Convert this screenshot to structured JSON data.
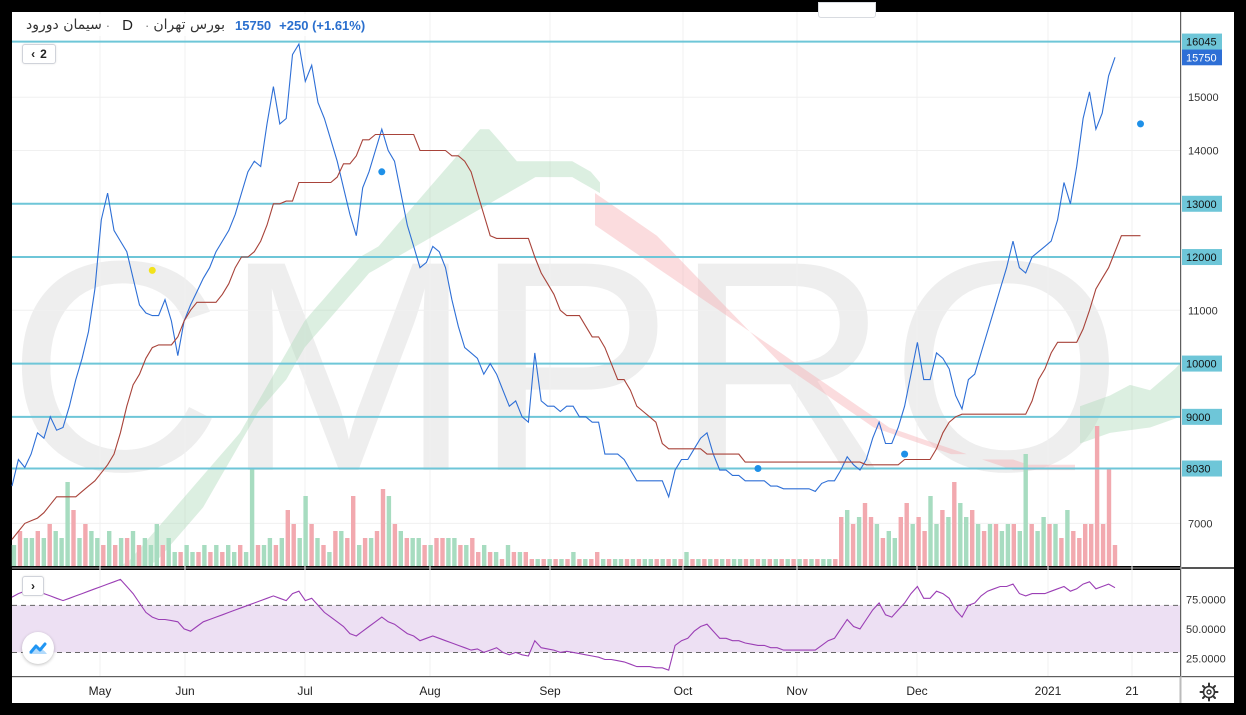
{
  "legend": {
    "symbol": "سیمان دورود",
    "dot": "·",
    "timeframe": "D",
    "exchange": "بورس تهران",
    "price": "15750",
    "change": "+250 (+1.61%)"
  },
  "indicator_count": "2",
  "controls": {
    "collapse_main": "‹",
    "expand_rsi": "›"
  },
  "colors": {
    "price_line": "#2e6fd6",
    "base_line": "#a8433a",
    "horizontal_level": "#6ec6d8",
    "cloud_bull": "#a8d8b4",
    "cloud_bear": "#f5a8ad",
    "volume_up": "#a7dcc0",
    "volume_down": "#f2a9af",
    "rsi_line": "#9b3fb5",
    "rsi_band": "#ede0f3",
    "marker": "#1e90e8",
    "marker_yellow": "#f2e21b",
    "watermark": "#e4e4e4"
  },
  "watermark": "CMPRO",
  "chart_data": [
    {
      "type": "line",
      "title": "",
      "x_ticks": [
        "May",
        "Jun",
        "Jul",
        "Aug",
        "Sep",
        "Oct",
        "Nov",
        "Dec",
        "2021",
        "21"
      ],
      "y_ticks": [
        7000,
        8030,
        9000,
        10000,
        11000,
        12000,
        13000,
        14000,
        15000,
        15750,
        16045
      ],
      "y_axis_labels": [
        "7000",
        "8030",
        "9000",
        "10000",
        "11000",
        "12000",
        "13000",
        "14000",
        "15000",
        "15750",
        "16045"
      ],
      "highlighted_y_labels": [
        "8030",
        "9000",
        "10000",
        "12000",
        "13000",
        "15750",
        "16045"
      ],
      "ylim": [
        6200,
        16600
      ],
      "horizontal_levels": [
        8030,
        9000,
        10000,
        12000,
        13000,
        16045
      ],
      "grid": true,
      "series": [
        {
          "kind": "price",
          "values": [
            7700,
            8200,
            8050,
            8300,
            8700,
            8600,
            9000,
            8750,
            8800,
            9200,
            9700,
            10100,
            10600,
            11400,
            12700,
            13200,
            12500,
            12300,
            12100,
            11600,
            11100,
            10950,
            10900,
            10900,
            11200,
            10800,
            10150,
            10800,
            11100,
            11350,
            11600,
            11800,
            12100,
            12300,
            12500,
            12800,
            13200,
            13600,
            13800,
            13700,
            14500,
            15200,
            14500,
            14600,
            15800,
            16000,
            15300,
            15600,
            14900,
            14600,
            14200,
            13800,
            13300,
            12800,
            12400,
            13300,
            13600,
            14000,
            14400,
            14000,
            13800,
            13200,
            12600,
            12200,
            11800,
            11900,
            12200,
            12100,
            11800,
            11200,
            10700,
            10300,
            10200,
            10100,
            9800,
            10000,
            9800,
            9500,
            9200,
            9300,
            9000,
            8900,
            10200,
            9300,
            9200,
            9200,
            9100,
            9200,
            9200,
            9000,
            9000,
            8900,
            8900,
            8300,
            8300,
            8300,
            8200,
            8000,
            7800,
            7800,
            7800,
            7800,
            7800,
            7500,
            8000,
            8200,
            8200,
            8400,
            8600,
            8700,
            8300,
            8000,
            8000,
            7900,
            7900,
            7800,
            7800,
            7800,
            7800,
            7700,
            7700,
            7650,
            7650,
            7650,
            7650,
            7650,
            7600,
            7750,
            7800,
            7800,
            8000,
            8250,
            8100,
            8000,
            8200,
            8600,
            8900,
            8500,
            8500,
            8800,
            9200,
            9800,
            10400,
            9700,
            9700,
            10200,
            10100,
            9900,
            9400,
            9150,
            9700,
            9800,
            10200,
            10600,
            11000,
            11400,
            11800,
            12300,
            11800,
            11700,
            12000,
            12100,
            12200,
            12300,
            12700,
            13400,
            13000,
            13700,
            14600,
            15100,
            14400,
            14700,
            15400,
            15750
          ]
        },
        {
          "kind": "baseline",
          "values": [
            6700,
            6850,
            7000,
            7050,
            7100,
            7200,
            7350,
            7500,
            7500,
            7500,
            7500,
            7600,
            7700,
            7800,
            7950,
            8100,
            8300,
            8700,
            9200,
            9600,
            9800,
            10100,
            10300,
            10350,
            10350,
            10350,
            10500,
            10800,
            11000,
            11150,
            11150,
            11150,
            11150,
            11300,
            11500,
            11800,
            12000,
            12000,
            12100,
            12300,
            12600,
            13000,
            13000,
            13050,
            13050,
            13400,
            13400,
            13400,
            13400,
            13400,
            13400,
            13500,
            13750,
            13750,
            13900,
            14200,
            14200,
            14300,
            14300,
            14300,
            14300,
            14300,
            14300,
            14300,
            14000,
            14000,
            14000,
            14000,
            14000,
            13900,
            13900,
            13800,
            13600,
            13200,
            12800,
            12400,
            12350,
            12350,
            12350,
            12350,
            12350,
            12350,
            12000,
            11700,
            11500,
            11300,
            11000,
            10900,
            10900,
            10900,
            10700,
            10500,
            10500,
            10300,
            10000,
            9700,
            9700,
            9500,
            9200,
            9100,
            9000,
            8900,
            8500,
            8400,
            8400,
            8400,
            8400,
            8400,
            8400,
            8300,
            8300,
            8300,
            8300,
            8300,
            8300,
            8150,
            8150,
            8150,
            8150,
            8150,
            8150,
            8150,
            8150,
            8150,
            8150,
            8150,
            8150,
            8150,
            8150,
            8150,
            8150,
            8150,
            8150,
            8150,
            8100,
            8100,
            8100,
            8100,
            8100,
            8100,
            8200,
            8200,
            8200,
            8200,
            8200,
            8400,
            8700,
            8900,
            9000,
            9050,
            9050,
            9050,
            9050,
            9050,
            9050,
            9050,
            9050,
            9050,
            9050,
            9050,
            9300,
            9700,
            9900,
            10200,
            10400,
            10400,
            10400,
            10400,
            10650,
            11000,
            11400,
            11600,
            11800,
            12100,
            12400,
            12400,
            12400,
            12400
          ]
        }
      ],
      "cloud": [
        {
          "kind": "bull",
          "top": [
            6200,
            6300,
            6500,
            6700,
            6900,
            7100,
            7300,
            7500,
            7700,
            7900,
            8100,
            8300,
            8500,
            8700,
            9000,
            9300,
            9600,
            9900,
            10200,
            10500,
            10800,
            11000,
            11200,
            11400,
            11600,
            11800,
            12000,
            12100,
            12200,
            12400,
            12600,
            12800,
            13000,
            13200,
            13400,
            13600,
            13800,
            14000,
            14200,
            14400,
            14400,
            14200,
            14000,
            13800,
            13800,
            13800,
            13800,
            13800,
            13800,
            13800,
            13700,
            13600,
            13400
          ],
          "bottom": [
            6200,
            6200,
            6200,
            6200,
            6300,
            6500,
            6700,
            6900,
            7100,
            7300,
            7600,
            7900,
            8200,
            8500,
            8800,
            9100,
            9300,
            9500,
            9700,
            10000,
            10300,
            10500,
            10700,
            10900,
            11100,
            11300,
            11500,
            11700,
            11800,
            11900,
            12000,
            12100,
            12200,
            12300,
            12400,
            12500,
            12600,
            12700,
            12800,
            12900,
            13000,
            13100,
            13200,
            13300,
            13400,
            13500,
            13500,
            13500,
            13500,
            13500,
            13400,
            13300,
            13200
          ]
        },
        {
          "kind": "bear",
          "top": [
            13200,
            13000,
            12800,
            12600,
            12400,
            12100,
            11800,
            11500,
            11200,
            10900,
            10600,
            10300,
            10000,
            9800,
            9600,
            9400,
            9200,
            9000,
            8800,
            8700,
            8600,
            8500,
            8400,
            8300,
            8300,
            8200,
            8200,
            8200,
            8100,
            8100,
            8100,
            8100
          ],
          "bottom": [
            12600,
            12400,
            12200,
            12000,
            11800,
            11600,
            11400,
            11200,
            11000,
            10800,
            10600,
            10400,
            10200,
            10000,
            9800,
            9600,
            9400,
            9200,
            9000,
            8800,
            8700,
            8600,
            8500,
            8400,
            8300,
            8200,
            8100,
            8000,
            8000,
            8000,
            8000,
            8000
          ]
        }
      ],
      "markers": [
        {
          "index": 22,
          "value": 11750,
          "color": "yellow"
        },
        {
          "index": 58,
          "value": 13600,
          "color": "blue"
        },
        {
          "index": 117,
          "value": 8030,
          "color": "blue"
        },
        {
          "index": 140,
          "value": 8300,
          "color": "blue"
        },
        {
          "index": 177,
          "value": 14500,
          "color": "blue"
        }
      ]
    },
    {
      "type": "bar",
      "title": "",
      "series_kind": "volume",
      "values": [
        0.15,
        0.25,
        0.2,
        0.2,
        0.25,
        0.2,
        0.3,
        0.25,
        0.2,
        0.6,
        0.4,
        0.2,
        0.3,
        0.25,
        0.2,
        0.15,
        0.25,
        0.15,
        0.2,
        0.2,
        0.25,
        0.15,
        0.2,
        0.15,
        0.3,
        0.15,
        0.2,
        0.1,
        0.1,
        0.15,
        0.1,
        0.1,
        0.15,
        0.1,
        0.15,
        0.1,
        0.15,
        0.1,
        0.15,
        0.1,
        0.7,
        0.15,
        0.15,
        0.2,
        0.15,
        0.2,
        0.4,
        0.3,
        0.2,
        0.5,
        0.3,
        0.2,
        0.15,
        0.1,
        0.25,
        0.25,
        0.2,
        0.5,
        0.15,
        0.2,
        0.2,
        0.25,
        0.55,
        0.5,
        0.3,
        0.25,
        0.2,
        0.2,
        0.2,
        0.15,
        0.15,
        0.2,
        0.2,
        0.2,
        0.2,
        0.15,
        0.15,
        0.2,
        0.1,
        0.15,
        0.1,
        0.1,
        0.05,
        0.15,
        0.1,
        0.1,
        0.1,
        0.05,
        0.05,
        0.05,
        0.05,
        0.05,
        0.05,
        0.05,
        0.1,
        0.05,
        0.05,
        0.05,
        0.1,
        0.05,
        0.05,
        0.05,
        0.05,
        0.05,
        0.05,
        0.05,
        0.05,
        0.05,
        0.05,
        0.05,
        0.05,
        0.05,
        0.05,
        0.1,
        0.05,
        0.05,
        0.05,
        0.05,
        0.05,
        0.05,
        0.05,
        0.05,
        0.05,
        0.05,
        0.05,
        0.05,
        0.05,
        0.05,
        0.05,
        0.05,
        0.05,
        0.05,
        0.05,
        0.05,
        0.05,
        0.05,
        0.05,
        0.05,
        0.05,
        0.35,
        0.4,
        0.3,
        0.35,
        0.45,
        0.35,
        0.3,
        0.2,
        0.25,
        0.2,
        0.35,
        0.45,
        0.3,
        0.35,
        0.25,
        0.5,
        0.3,
        0.4,
        0.35,
        0.6,
        0.45,
        0.35,
        0.4,
        0.3,
        0.25,
        0.3,
        0.3,
        0.25,
        0.3,
        0.3,
        0.25,
        0.8,
        0.3,
        0.25,
        0.35,
        0.3,
        0.3,
        0.2,
        0.4,
        0.25,
        0.2,
        0.3,
        0.3,
        1.0,
        0.3,
        0.7,
        0.15
      ],
      "up_flags": [
        1,
        0,
        1,
        1,
        0,
        1,
        0,
        1,
        1,
        1,
        0,
        1,
        0,
        1,
        1,
        0,
        1,
        0,
        1,
        0,
        1,
        0,
        1,
        1,
        1,
        0,
        1,
        1,
        0,
        1,
        1,
        0,
        1,
        0,
        1,
        0,
        1,
        1,
        0,
        1,
        1,
        0,
        1,
        1,
        0,
        1,
        0,
        0,
        1,
        1,
        0,
        1,
        0,
        1,
        0,
        1,
        0,
        0,
        1,
        0,
        1,
        0,
        0,
        1,
        0,
        1,
        0,
        1,
        1,
        0,
        1,
        0,
        0,
        1,
        1,
        0,
        1,
        0,
        0,
        1,
        0,
        1,
        0,
        1,
        0,
        1,
        0,
        0,
        1,
        0,
        1,
        0,
        1,
        0,
        1,
        0,
        1,
        0,
        0,
        1,
        0,
        1,
        1,
        0,
        1,
        0,
        1,
        1,
        0,
        1,
        0,
        1,
        0,
        1,
        0,
        1,
        0,
        1,
        0,
        1,
        0,
        1,
        1,
        0,
        1,
        0,
        1,
        0,
        1,
        0,
        1,
        0,
        1,
        0,
        1,
        0,
        1,
        1,
        0,
        0,
        1,
        0,
        1,
        0,
        0,
        1,
        0,
        1,
        1,
        0,
        0,
        1,
        0,
        0,
        1,
        1,
        0,
        1,
        0,
        1,
        1,
        0,
        1,
        0,
        1,
        0,
        1,
        1,
        0,
        1,
        1,
        0,
        1,
        1,
        0,
        1,
        0,
        1,
        0
      ]
    },
    {
      "type": "line",
      "title": "",
      "series_kind": "rsi",
      "y_axis_labels": [
        "75.0000",
        "50.0000",
        "25.0000"
      ],
      "ylim": [
        10,
        100
      ],
      "bands": [
        70,
        30
      ],
      "values": [
        77,
        80,
        82,
        80,
        82,
        80,
        78,
        76,
        74,
        76,
        78,
        80,
        82,
        84,
        86,
        88,
        90,
        92,
        86,
        80,
        72,
        64,
        60,
        58,
        58,
        57,
        56,
        50,
        48,
        52,
        56,
        58,
        60,
        62,
        64,
        66,
        68,
        70,
        72,
        74,
        76,
        78,
        76,
        74,
        80,
        82,
        74,
        76,
        70,
        64,
        60,
        56,
        52,
        46,
        44,
        48,
        52,
        56,
        60,
        56,
        54,
        50,
        46,
        44,
        40,
        42,
        44,
        42,
        40,
        38,
        36,
        34,
        32,
        33,
        30,
        32,
        34,
        30,
        28,
        30,
        28,
        27,
        40,
        34,
        33,
        32,
        30,
        31,
        30,
        29,
        28,
        27,
        26,
        24,
        24,
        23,
        22,
        20,
        18,
        18,
        18,
        17,
        17,
        15,
        36,
        40,
        42,
        48,
        52,
        54,
        48,
        42,
        42,
        40,
        40,
        38,
        37,
        36,
        36,
        34,
        34,
        32,
        32,
        32,
        32,
        32,
        32,
        36,
        40,
        42,
        50,
        58,
        52,
        50,
        58,
        66,
        72,
        62,
        60,
        66,
        72,
        80,
        86,
        76,
        76,
        82,
        80,
        76,
        66,
        60,
        70,
        72,
        78,
        82,
        84,
        86,
        86,
        88,
        80,
        78,
        80,
        80,
        80,
        82,
        84,
        86,
        82,
        84,
        88,
        90,
        84,
        86,
        88,
        85
      ]
    }
  ]
}
